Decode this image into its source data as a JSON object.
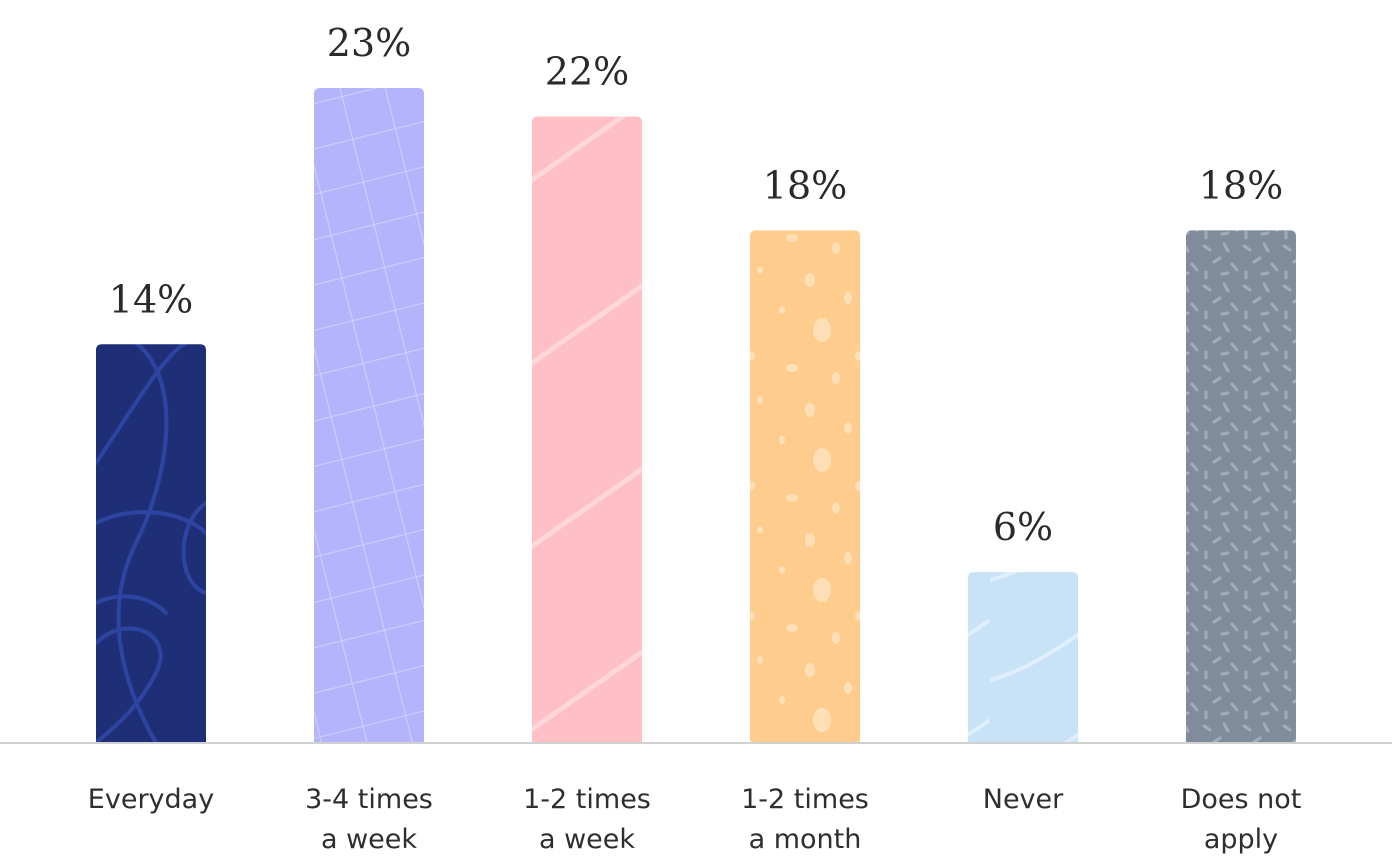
{
  "chart_data": {
    "type": "bar",
    "categories": [
      [
        "Everyday"
      ],
      [
        "3-4 times",
        "a week"
      ],
      [
        "1-2 times",
        "a week"
      ],
      [
        "1-2 times",
        "a month"
      ],
      [
        "Never"
      ],
      [
        "Does not",
        "apply"
      ]
    ],
    "values": [
      14,
      23,
      22,
      18,
      6,
      18
    ],
    "value_labels": [
      "14%",
      "23%",
      "22%",
      "18%",
      "6%",
      "18%"
    ],
    "colors": [
      "#1e2f78",
      "#b4b4fc",
      "#fec0c5",
      "#fecd8e",
      "#c8e2f8",
      "#808c9c"
    ],
    "patterns": [
      "swirl",
      "grid",
      "diagonal-stripe",
      "speckle",
      "wave",
      "dash-confetti"
    ],
    "title": "",
    "xlabel": "",
    "ylabel": "",
    "unit": "%",
    "ylim": [
      0,
      23
    ],
    "grid": false,
    "legend": "none"
  }
}
